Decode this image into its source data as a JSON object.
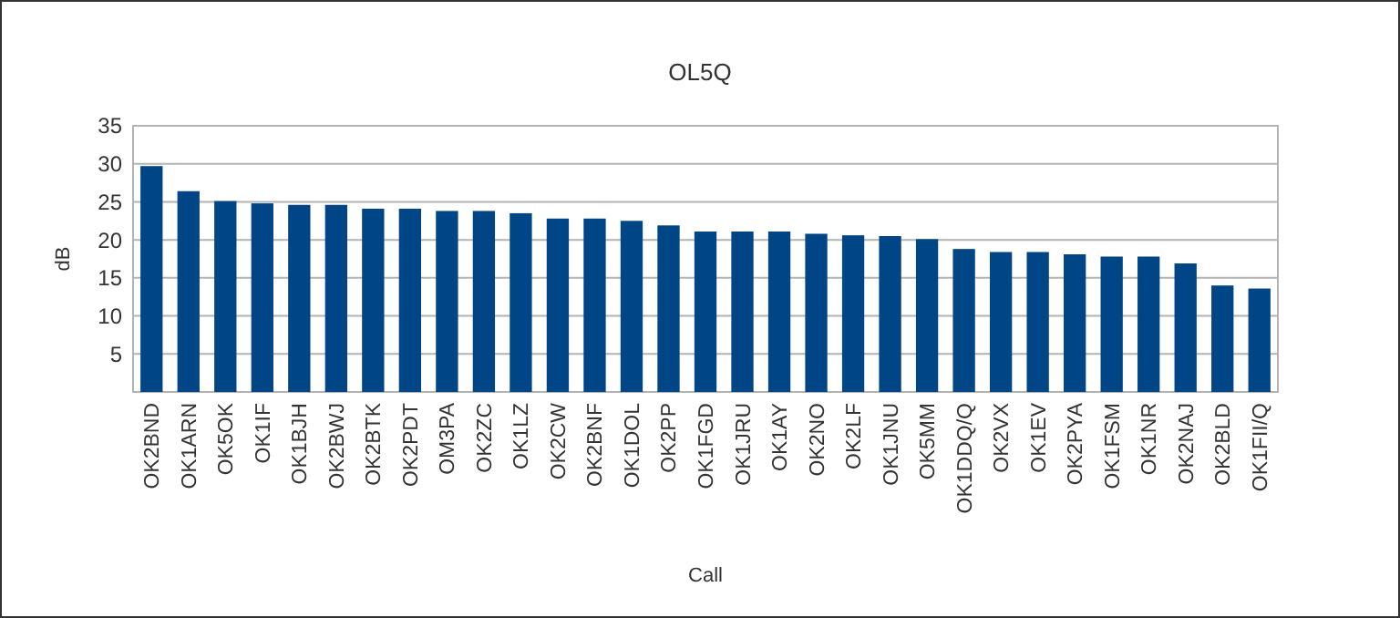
{
  "chart_data": {
    "type": "bar",
    "title": "OL5Q",
    "xlabel": "Call",
    "ylabel": "dB",
    "categories": [
      "OK2BND",
      "OK1ARN",
      "OK5OK",
      "OK1IF",
      "OK1BJH",
      "OK2BWJ",
      "OK2BTK",
      "OK2PDT",
      "OM3PA",
      "OK2ZC",
      "OK1LZ",
      "OK2CW",
      "OK2BNF",
      "OK1DOL",
      "OK2PP",
      "OK1FGD",
      "OK1JRU",
      "OK1AY",
      "OK2NO",
      "OK2LF",
      "OK1JNU",
      "OK5MM",
      "OK1DDQ/Q",
      "OK2VX",
      "OK1EV",
      "OK2PYA",
      "OK1FSM",
      "OK1NR",
      "OK2NAJ",
      "OK2BLD",
      "OK1FII/Q"
    ],
    "series": [
      {
        "color": "#004586",
        "values": [
          29.7,
          26.4,
          25.1,
          24.8,
          24.6,
          24.6,
          24.1,
          24.1,
          23.8,
          23.8,
          23.5,
          22.8,
          22.8,
          22.5,
          21.9,
          21.1,
          21.1,
          21.1,
          20.8,
          20.6,
          20.5,
          20.1,
          18.8,
          18.4,
          18.4,
          18.1,
          17.8,
          17.8,
          16.9,
          14.0,
          13.6
        ]
      }
    ],
    "ylim": [
      0,
      35
    ],
    "yticks": [
      {
        "value": 0,
        "label": null
      },
      5,
      10,
      15,
      20,
      25,
      30,
      35
    ],
    "grid": "y"
  }
}
